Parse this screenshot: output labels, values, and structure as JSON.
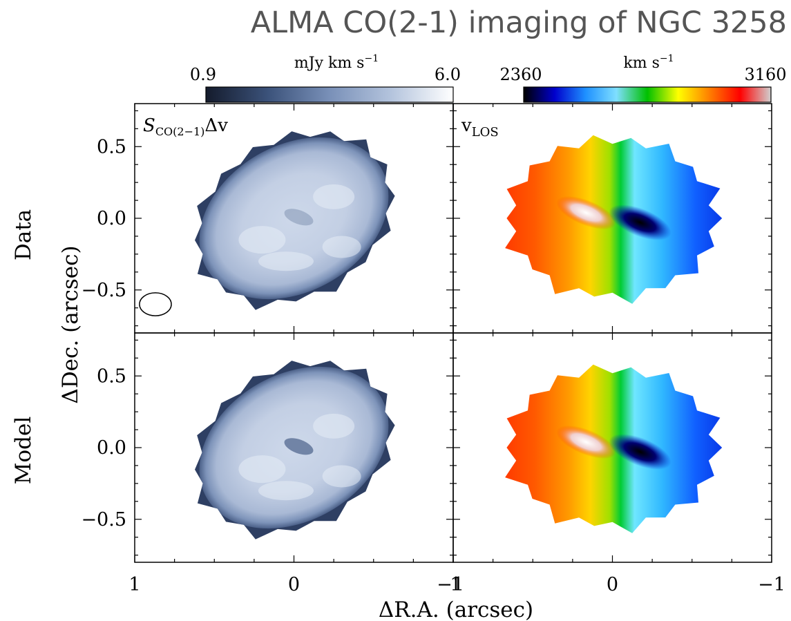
{
  "title": "ALMA CO(2-1) imaging of NGC 3258",
  "chart_data": {
    "type": "heatmap",
    "xlabel": "ΔR.A. (arcsec)",
    "ylabel": "ΔDec. (arcsec)",
    "x_ticks": [
      1,
      0,
      -1
    ],
    "x_tick_labels": [
      "1",
      "0",
      "−1"
    ],
    "y_ticks": [
      0.5,
      0.0,
      -0.5
    ],
    "y_tick_labels": [
      "0.5",
      "0.0",
      "−0.5"
    ],
    "xlim": [
      1.0,
      -1.0
    ],
    "ylim": [
      -0.8,
      0.8
    ],
    "row_labels": [
      "Data",
      "Model"
    ],
    "panel_labels": {
      "flux": "S",
      "flux_sub": "CO(2−1)",
      "flux_tail": "Δv",
      "vel": "v",
      "vel_sub": "LOS"
    },
    "colorbars": [
      {
        "unit_main": "mJy km s",
        "unit_exp": "−1",
        "min_label": "0.9",
        "max_label": "6.0",
        "min": 0.9,
        "max": 6.0,
        "colors": [
          "#141b2c",
          "#3b527a",
          "#7990b8",
          "#b4c4dd",
          "#ffffff"
        ]
      },
      {
        "unit_main": "km s",
        "unit_exp": "−1",
        "min_label": "2360",
        "max_label": "3160",
        "min": 2360,
        "max": 3160,
        "colors": [
          "#000000",
          "#0000cc",
          "#1e90ff",
          "#7fdfff",
          "#00c000",
          "#ffff00",
          "#ff8000",
          "#ff0000",
          "#d0d0d0"
        ]
      }
    ],
    "disk": {
      "center": [
        0.0,
        0.0
      ],
      "semi_major": 0.62,
      "semi_minor": 0.5,
      "position_angle_deg": -30
    },
    "beam": {
      "center_ra": 0.87,
      "center_dec": -0.6,
      "major": 0.1,
      "minor": 0.08
    },
    "panels": [
      {
        "row": "Data",
        "quantity": "integrated flux"
      },
      {
        "row": "Data",
        "quantity": "line-of-sight velocity"
      },
      {
        "row": "Model",
        "quantity": "integrated flux"
      },
      {
        "row": "Model",
        "quantity": "line-of-sight velocity"
      }
    ]
  }
}
